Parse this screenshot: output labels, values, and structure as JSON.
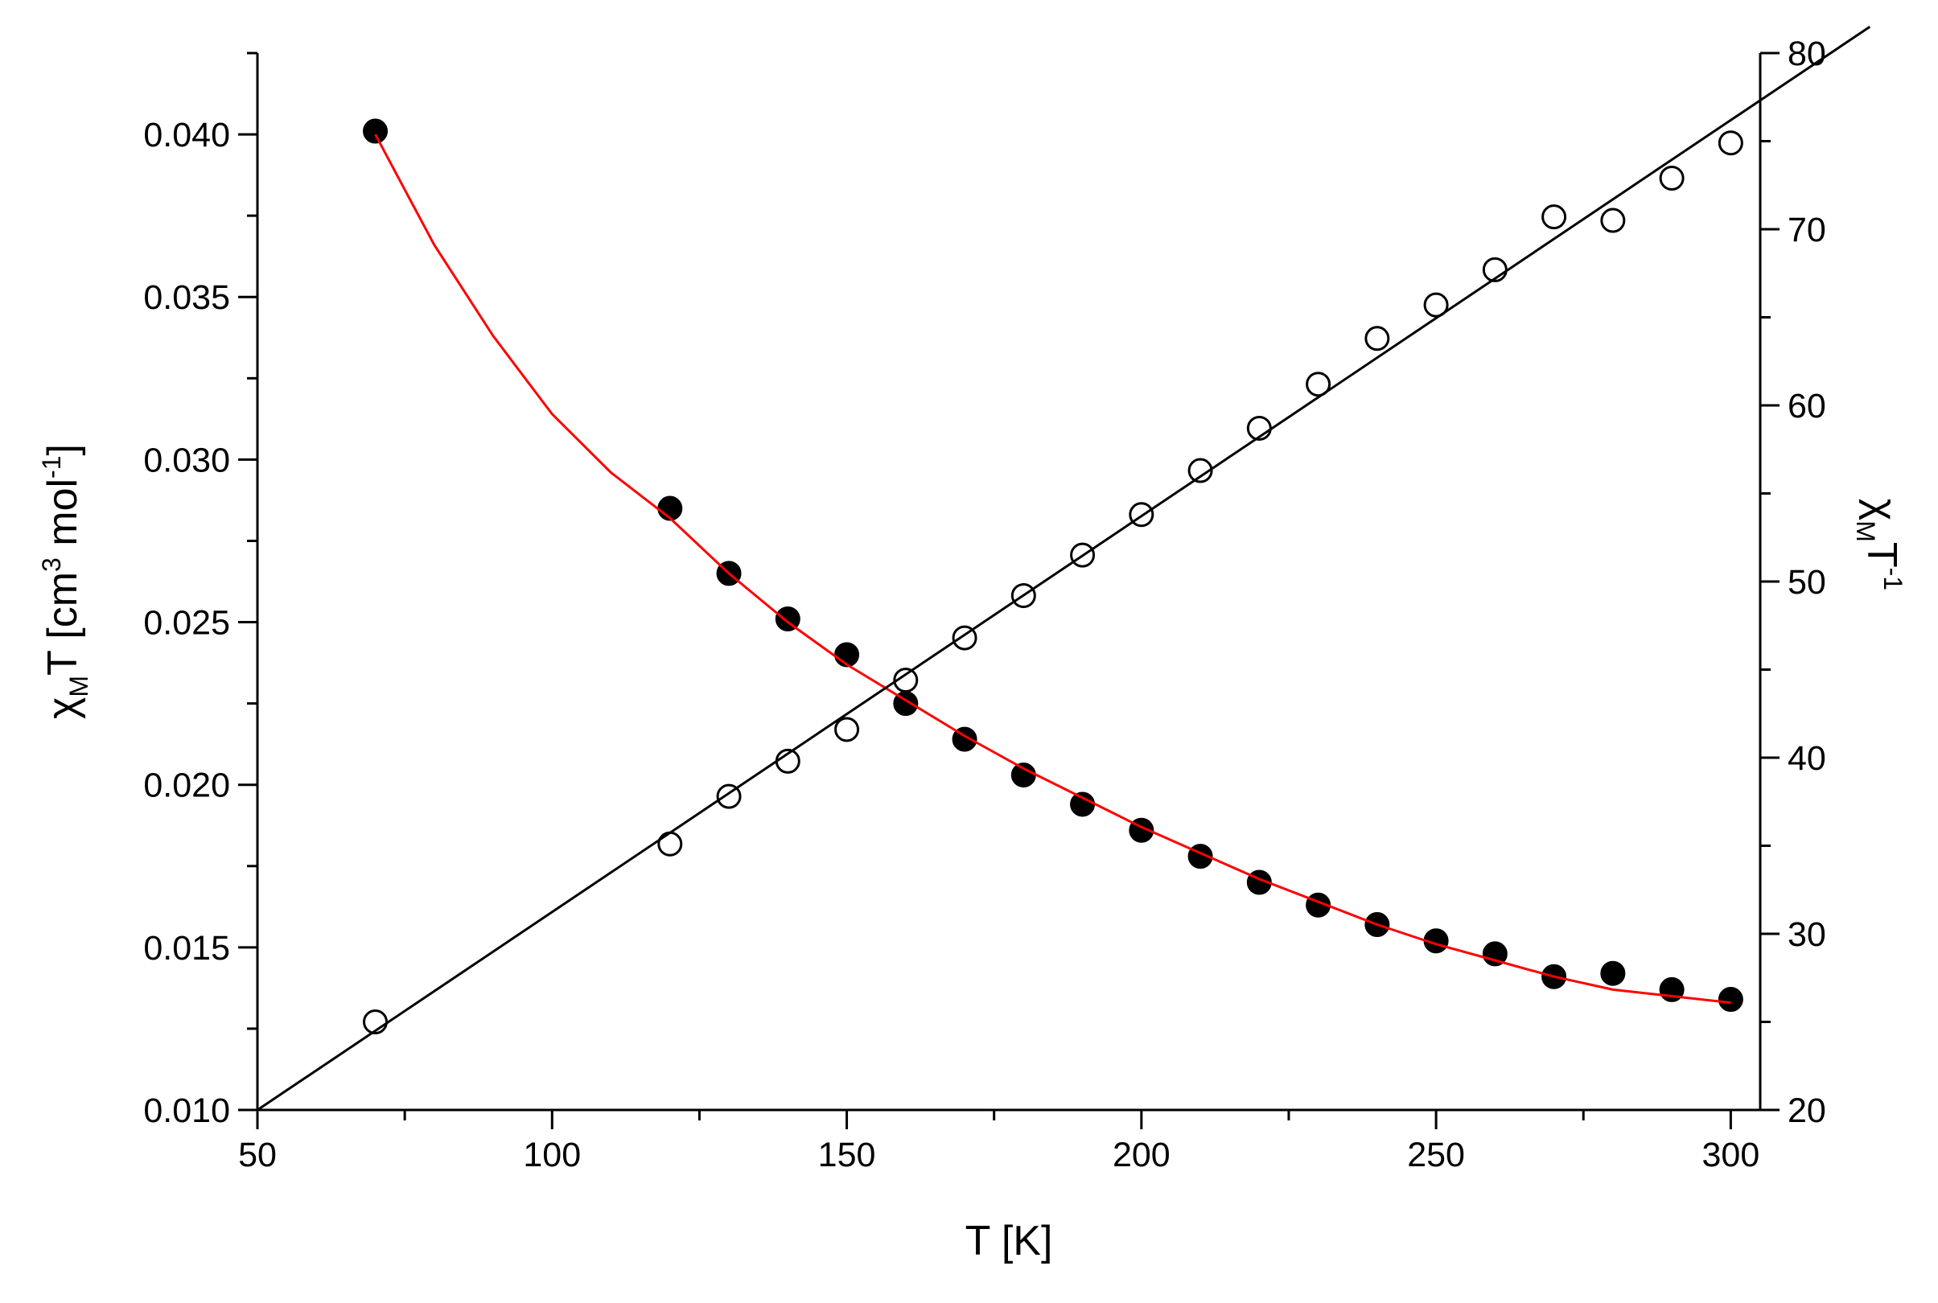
{
  "chart_data": {
    "type": "scatter",
    "xlabel": "T [K]",
    "ylabel_parts": [
      "χ",
      "M",
      "T [cm",
      "3",
      " mol",
      "-1",
      "]"
    ],
    "y2label_parts": [
      "χ",
      "M",
      "T",
      "-1"
    ],
    "xlim": [
      50,
      305
    ],
    "xticks": [
      50,
      100,
      150,
      200,
      250,
      300
    ],
    "ylim": [
      0.01,
      0.0425
    ],
    "yticks": [
      {
        "value": 0.01,
        "label": "0.010"
      },
      {
        "value": 0.015,
        "label": "0.015"
      },
      {
        "value": 0.02,
        "label": "0.020"
      },
      {
        "value": 0.025,
        "label": "0.025"
      },
      {
        "value": 0.03,
        "label": "0.030"
      },
      {
        "value": 0.035,
        "label": "0.035"
      },
      {
        "value": 0.04,
        "label": "0.040"
      }
    ],
    "y2lim": [
      20,
      80
    ],
    "y2ticks": [
      20,
      30,
      40,
      50,
      60,
      70,
      80
    ],
    "series": [
      {
        "marker": "filled",
        "color": "#000000",
        "axis": "y",
        "x": [
          70,
          120,
          130,
          140,
          150,
          160,
          170,
          180,
          190,
          200,
          210,
          220,
          230,
          240,
          250,
          260,
          270,
          280,
          290,
          300
        ],
        "values": [
          0.0401,
          0.0285,
          0.0265,
          0.0251,
          0.024,
          0.0225,
          0.0214,
          0.0203,
          0.0194,
          0.0186,
          0.0178,
          0.017,
          0.0163,
          0.0157,
          0.0152,
          0.0148,
          0.0141,
          0.0142,
          0.0137,
          0.0134
        ]
      },
      {
        "marker": "open",
        "color": "#000000",
        "axis": "y2",
        "x": [
          70,
          120,
          130,
          140,
          150,
          160,
          170,
          180,
          190,
          200,
          210,
          220,
          230,
          240,
          250,
          260,
          270,
          280,
          290,
          300
        ],
        "values": [
          25.0,
          35.1,
          37.8,
          39.8,
          41.6,
          44.4,
          46.8,
          49.2,
          51.5,
          53.8,
          56.3,
          58.7,
          61.2,
          63.8,
          65.7,
          67.7,
          70.7,
          70.5,
          72.9,
          74.9
        ]
      },
      {
        "line": true,
        "color": "#ff0000",
        "axis": "y",
        "x": [
          70,
          80,
          90,
          100,
          110,
          120,
          130,
          140,
          150,
          160,
          170,
          180,
          190,
          200,
          210,
          220,
          230,
          240,
          250,
          260,
          270,
          280,
          290,
          300
        ],
        "values": [
          0.04,
          0.0366,
          0.0338,
          0.0314,
          0.0296,
          0.0282,
          0.0265,
          0.025,
          0.0237,
          0.0226,
          0.0215,
          0.0205,
          0.0196,
          0.0187,
          0.0179,
          0.0171,
          0.0164,
          0.0157,
          0.0151,
          0.0146,
          0.0141,
          0.0137,
          0.0135,
          0.0133
        ]
      },
      {
        "line": true,
        "color": "#000000",
        "axis": "y2",
        "x": [
          50,
          323.6
        ],
        "values": [
          20,
          81.5
        ]
      }
    ]
  }
}
